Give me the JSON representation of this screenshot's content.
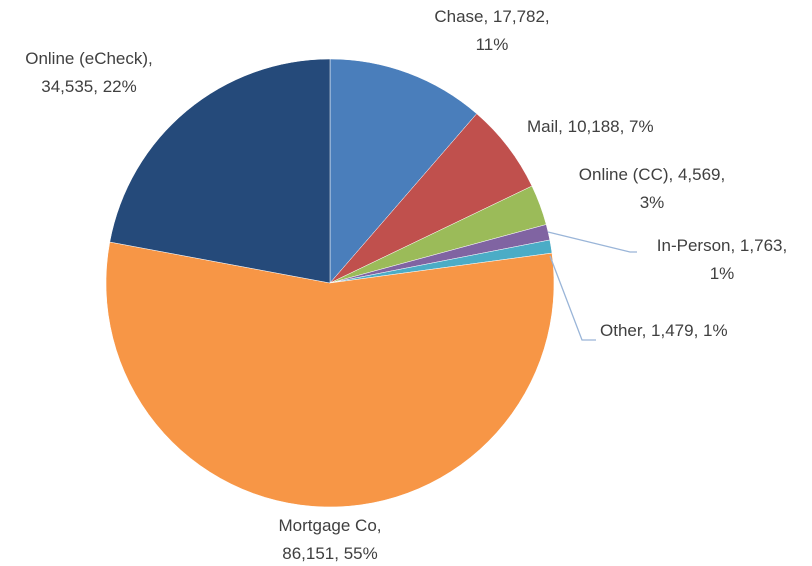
{
  "chart_data": {
    "type": "pie",
    "categories": [
      "Chase",
      "Mail",
      "Online (CC)",
      "In-Person",
      "Other",
      "Mortgage Co",
      "Online (eCheck)"
    ],
    "values": [
      17782,
      10188,
      4569,
      1763,
      1479,
      86151,
      34535
    ],
    "value_labels": [
      "Chase, 17,782, 11%",
      "Mail, 10,188, 7%",
      "Online (CC), 4,569, 3%",
      "In-Person, 1,763, 1%",
      "Other, 1,479, 1%",
      "Mortgage Co, 86,151, 55%",
      "Online (eCheck), 34,535, 22%"
    ],
    "colors": [
      "#4a7ebb",
      "#c0504d",
      "#9bbb59",
      "#8064a2",
      "#4bacc6",
      "#f79646",
      "#254a7a"
    ]
  }
}
